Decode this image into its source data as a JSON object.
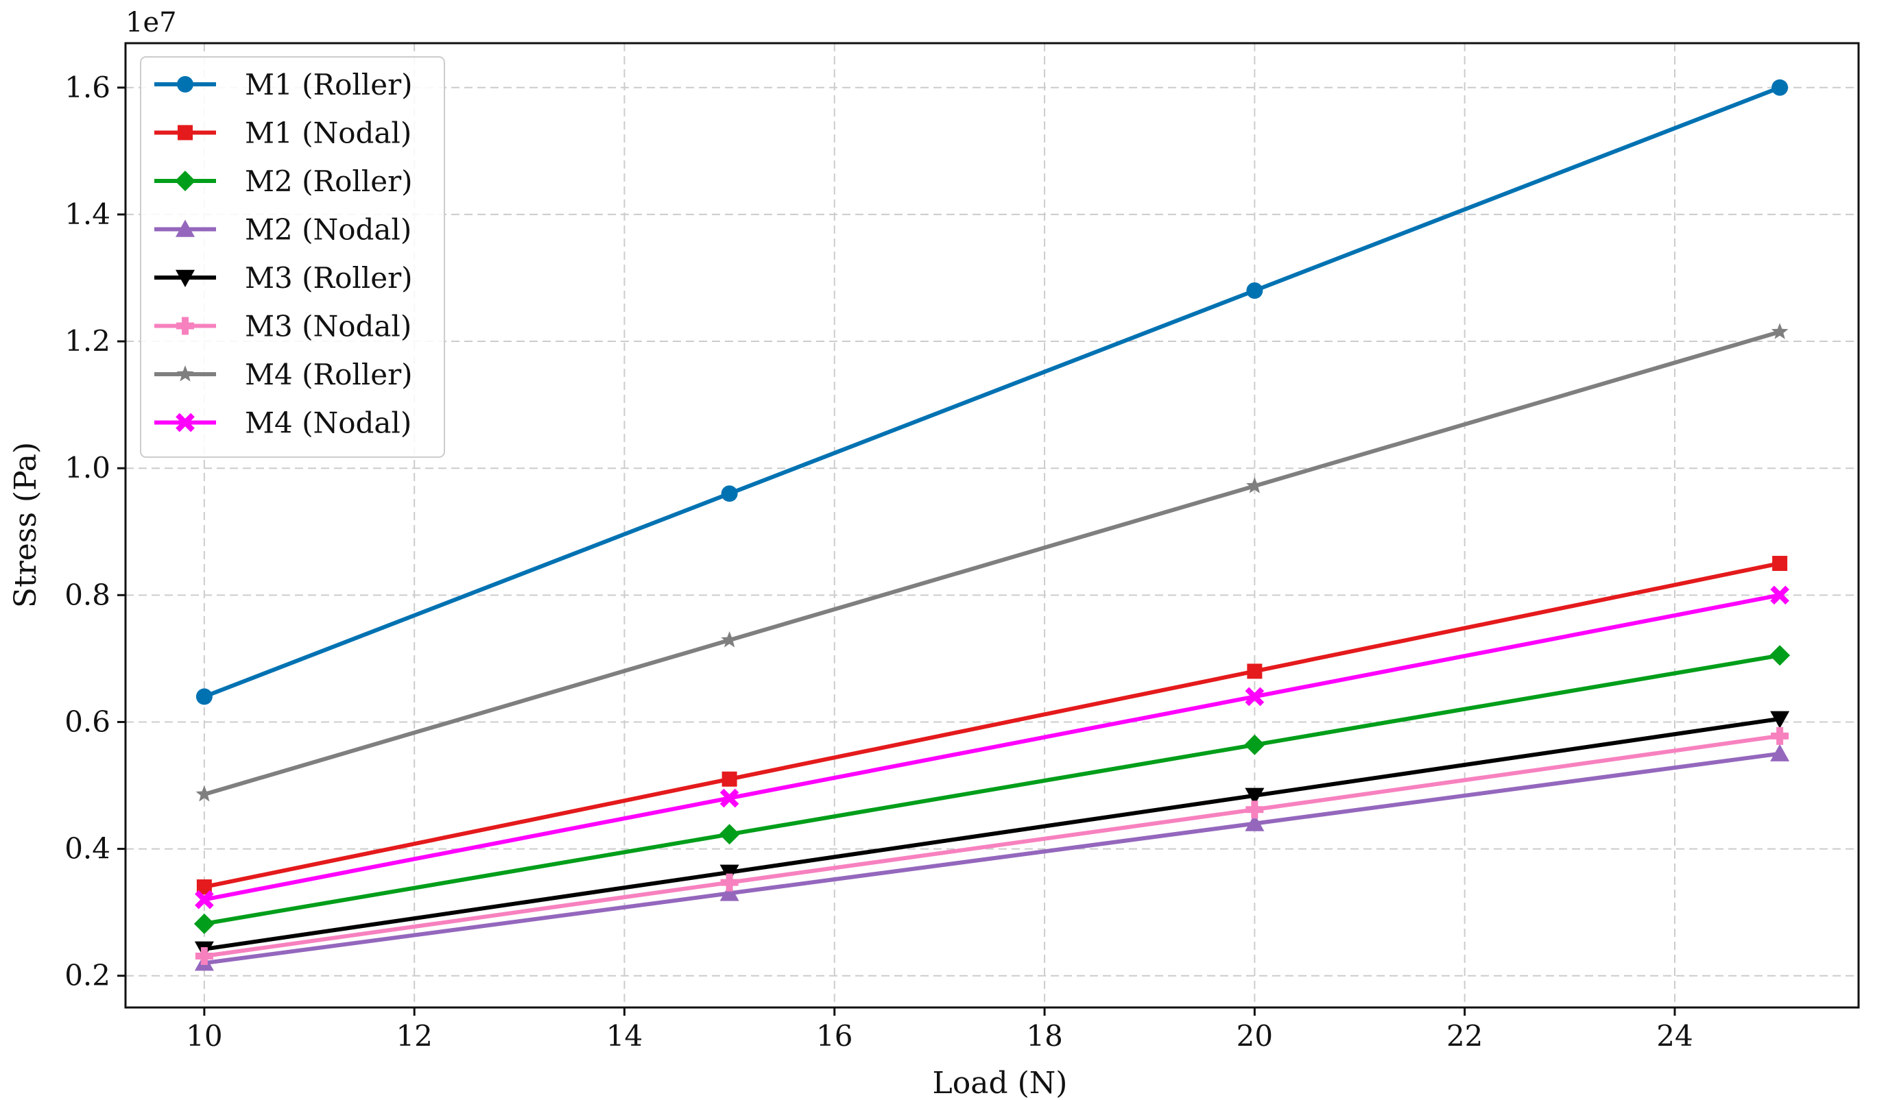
{
  "chart_data": {
    "type": "line",
    "title": "",
    "xlabel": "Load (N)",
    "ylabel": "Stress (Pa)",
    "y_offset_label": "1e7",
    "x": [
      10,
      15,
      20,
      25
    ],
    "xlim": [
      9.25,
      25.75
    ],
    "ylim": [
      1500000,
      16700000
    ],
    "xticks": [
      10,
      12,
      14,
      16,
      18,
      20,
      22,
      24
    ],
    "xtick_labels": [
      "10",
      "12",
      "14",
      "16",
      "18",
      "20",
      "22",
      "24"
    ],
    "yticks": [
      2000000,
      4000000,
      6000000,
      8000000,
      10000000,
      12000000,
      14000000,
      16000000
    ],
    "ytick_labels": [
      "0.2",
      "0.4",
      "0.6",
      "0.8",
      "1.0",
      "1.2",
      "1.4",
      "1.6"
    ],
    "grid": true,
    "legend_position": "upper-left",
    "series": [
      {
        "name": "M1 (Roller)",
        "values": [
          6400000,
          9600000,
          12800000,
          16000000
        ],
        "color": "#0072b2",
        "marker": "circle"
      },
      {
        "name": "M1 (Nodal)",
        "values": [
          3400000,
          5100000,
          6800000,
          8500000
        ],
        "color": "#e41a1c",
        "marker": "square"
      },
      {
        "name": "M2 (Roller)",
        "values": [
          2820000,
          4230000,
          5640000,
          7050000
        ],
        "color": "#009e1a",
        "marker": "diamond"
      },
      {
        "name": "M2 (Nodal)",
        "values": [
          2200000,
          3300000,
          4400000,
          5500000
        ],
        "color": "#9467bd",
        "marker": "triangle-up"
      },
      {
        "name": "M3 (Roller)",
        "values": [
          2420000,
          3630000,
          4840000,
          6050000
        ],
        "color": "#000000",
        "marker": "triangle-down"
      },
      {
        "name": "M3 (Nodal)",
        "values": [
          2310000,
          3470000,
          4620000,
          5780000
        ],
        "color": "#f781bf",
        "marker": "plus"
      },
      {
        "name": "M4 (Roller)",
        "values": [
          4860000,
          7290000,
          9720000,
          12150000
        ],
        "color": "#7f7f7f",
        "marker": "star"
      },
      {
        "name": "M4 (Nodal)",
        "values": [
          3200000,
          4800000,
          6400000,
          8000000
        ],
        "color": "#ff00ff",
        "marker": "x"
      }
    ]
  }
}
